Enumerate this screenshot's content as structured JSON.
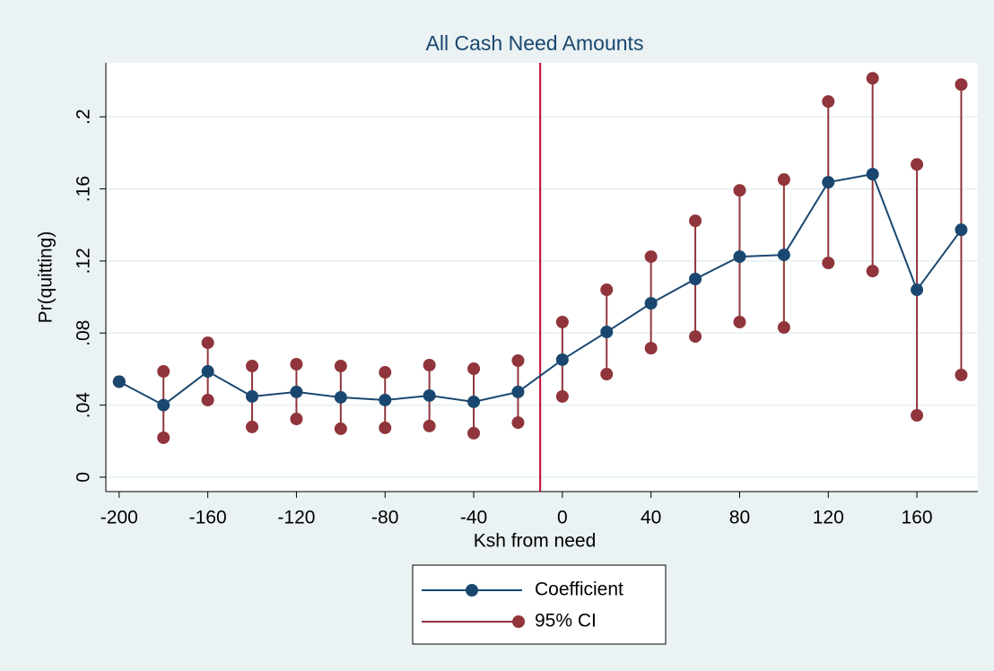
{
  "chart_data": {
    "type": "errorbar-line",
    "title": "All Cash Need Amounts",
    "x_label": "Ksh from need",
    "y_label": "Pr(quitting)",
    "x": [
      -200,
      -180,
      -160,
      -140,
      -120,
      -100,
      -80,
      -60,
      -40,
      -20,
      0,
      20,
      40,
      60,
      80,
      100,
      120,
      140,
      160,
      180
    ],
    "series": [
      {
        "name": "Coefficient",
        "color": "#1a476f",
        "values": [
          0.053,
          0.04,
          0.0587,
          0.0448,
          0.0473,
          0.0443,
          0.0428,
          0.0453,
          0.0418,
          0.0473,
          0.0652,
          0.0806,
          0.0965,
          0.11,
          0.1224,
          0.1234,
          0.1637,
          0.1682,
          0.104,
          0.1373
        ]
      },
      {
        "name": "95% CI",
        "color": "#90353b",
        "lower": [
          0.053,
          0.0219,
          0.0428,
          0.0279,
          0.0323,
          0.0269,
          0.0274,
          0.0284,
          0.0244,
          0.0303,
          0.0448,
          0.0572,
          0.0716,
          0.0781,
          0.0861,
          0.0831,
          0.1189,
          0.1144,
          0.0343,
          0.0567
        ],
        "upper": [
          0.053,
          0.0587,
          0.0746,
          0.0617,
          0.0627,
          0.0617,
          0.0582,
          0.0622,
          0.0602,
          0.0647,
          0.0861,
          0.104,
          0.1224,
          0.1423,
          0.1592,
          0.1652,
          0.2085,
          0.2214,
          0.1736,
          0.2179
        ]
      }
    ],
    "xline": -10,
    "xline_color": "#c10534",
    "xlim": [
      -206,
      187.5
    ],
    "xticks": [
      -200,
      -160,
      -120,
      -80,
      -40,
      0,
      40,
      80,
      120,
      160
    ],
    "ylim": [
      -0.008,
      0.23
    ],
    "yticks": [
      0,
      {
        "value": 0.04,
        "label": ".04"
      },
      {
        "value": 0.08,
        "label": ".08"
      },
      {
        "value": 0.12,
        "label": ".12"
      },
      {
        "value": 0.16,
        "label": ".16"
      },
      {
        "value": 0.2,
        "label": ".2"
      }
    ],
    "grid": true
  }
}
